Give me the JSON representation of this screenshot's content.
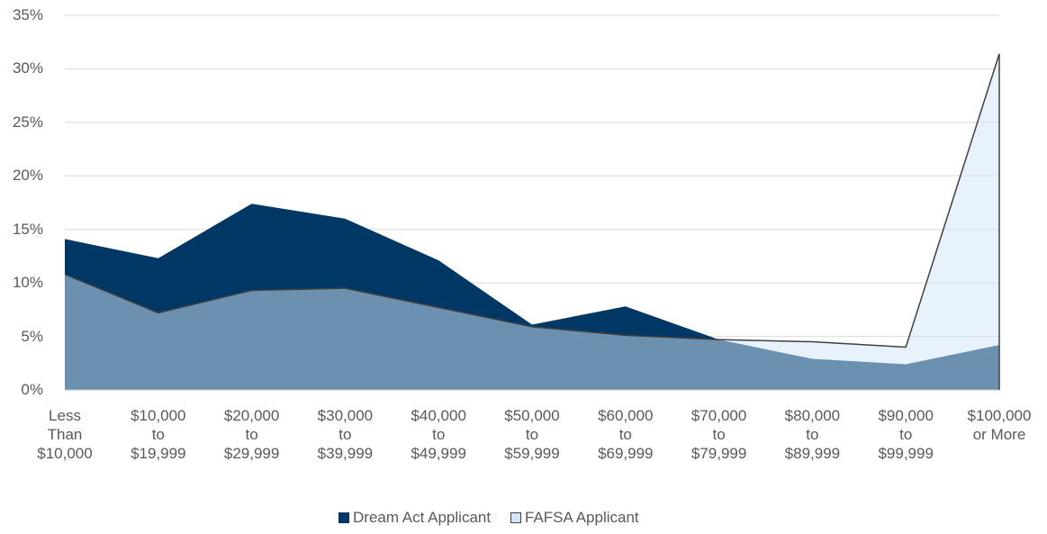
{
  "chart_data": {
    "type": "area",
    "categories": [
      "Less\nThan\n$10,000",
      "$10,000\nto\n$19,999",
      "$20,000\nto\n$29,999",
      "$30,000\nto\n$39,999",
      "$40,000\nto\n$49,999",
      "$50,000\nto\n$59,999",
      "$60,000\nto\n$69,999",
      "$70,000\nto\n$79,999",
      "$80,000\nto\n$89,999",
      "$90,000\nto\n$99,999",
      "$100,000\nor More"
    ],
    "series": [
      {
        "name": "Dream Act Applicant",
        "color": "#003865",
        "values": [
          14.1,
          12.3,
          17.4,
          16.0,
          12.1,
          6.1,
          7.8,
          4.7,
          2.9,
          2.4,
          4.2
        ]
      },
      {
        "name": "FAFSA Applicant",
        "color": "#d2e5f9",
        "values": [
          10.8,
          7.2,
          9.3,
          9.5,
          7.7,
          5.9,
          5.1,
          4.7,
          4.5,
          4.0,
          31.4
        ]
      }
    ],
    "ylim": [
      0,
      35
    ],
    "yticks": [
      {
        "value": 0,
        "label": "0%"
      },
      {
        "value": 5,
        "label": "5%"
      },
      {
        "value": 10,
        "label": "10%"
      },
      {
        "value": 15,
        "label": "15%"
      },
      {
        "value": 20,
        "label": "20%"
      },
      {
        "value": 25,
        "label": "25%"
      },
      {
        "value": 30,
        "label": "30%"
      },
      {
        "value": 35,
        "label": "35%"
      }
    ],
    "grid": true,
    "legend": "bottom"
  }
}
